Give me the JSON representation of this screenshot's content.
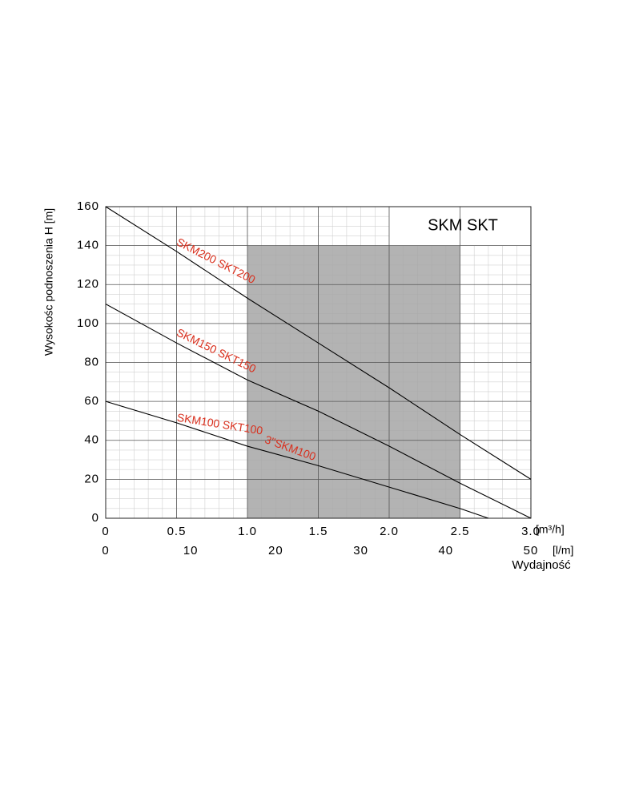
{
  "chart_data": {
    "type": "line",
    "title": "SKM SKT",
    "y_label": "Wysokośc podnoszenia H [m]",
    "x_unit": "[m³/h]",
    "x2_unit": "[l/m]",
    "x_label": "Wydajność",
    "xlim": [
      0,
      3.0
    ],
    "xticks": [
      0,
      0.5,
      {
        "value": 1.0,
        "label": "1.0"
      },
      1.5,
      {
        "value": 2.0,
        "label": "2.0"
      },
      2.5,
      {
        "value": 3.0,
        "label": "3.0"
      }
    ],
    "x2lim": [
      0,
      50
    ],
    "x2ticks": [
      0,
      10,
      20,
      30,
      40,
      50
    ],
    "ylim": [
      0,
      160
    ],
    "yticks": [
      0,
      20,
      40,
      60,
      80,
      100,
      120,
      140,
      160
    ],
    "grid": true,
    "shaded_region": {
      "x": [
        1.0,
        2.5
      ],
      "y": [
        0,
        140
      ],
      "color": "#a6a6a6"
    },
    "series": [
      {
        "name": "SKM200 SKT200",
        "color": "#000000",
        "label_color": "#d9301e",
        "x": [
          0,
          0.5,
          1.0,
          1.5,
          2.0,
          2.5,
          3.0
        ],
        "values": [
          160,
          137,
          113,
          90,
          67,
          43,
          20
        ]
      },
      {
        "name": "SKM150 SKT150",
        "color": "#000000",
        "label_color": "#d9301e",
        "x": [
          0,
          0.5,
          1.0,
          1.5,
          2.0,
          2.5,
          3.0
        ],
        "values": [
          110,
          90,
          71,
          55,
          37,
          18,
          0
        ]
      },
      {
        "name": "SKM100 SKT100",
        "color": "#000000",
        "label_color": "#d9301e",
        "x": [
          0,
          0.5,
          1.0,
          1.5,
          2.0,
          2.5,
          2.7
        ],
        "values": [
          60,
          49,
          37,
          27,
          16,
          5,
          0
        ]
      }
    ],
    "annotations": [
      "3\"SKM100"
    ]
  }
}
